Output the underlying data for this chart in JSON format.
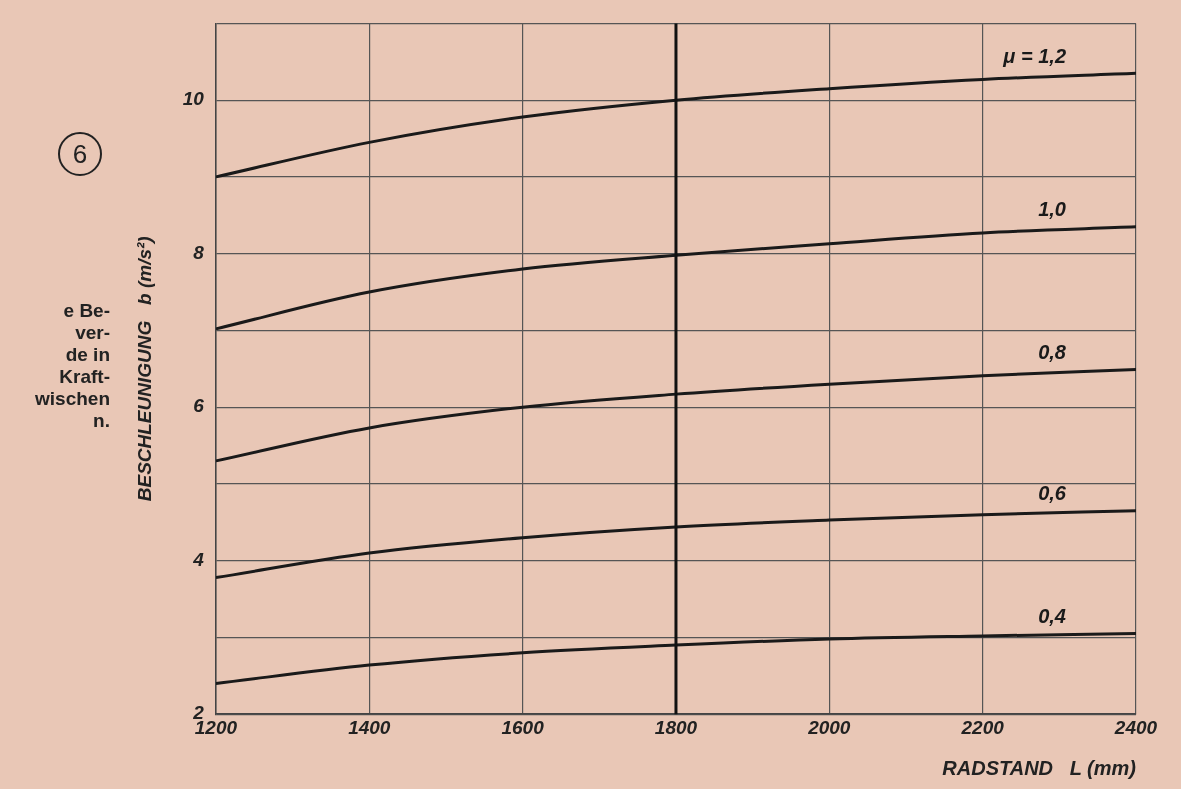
{
  "chart_data": {
    "type": "line",
    "xlabel": "RADSTAND   L (mm)",
    "ylabel": "BESCHLEUNIGUNG   b (m/s²)",
    "x": [
      1200,
      1400,
      1600,
      1800,
      2000,
      2200,
      2400
    ],
    "series": [
      {
        "name": "μ = 1,2",
        "color": "#1a1a1a",
        "values": [
          9.0,
          9.45,
          9.78,
          10.0,
          10.15,
          10.27,
          10.35
        ]
      },
      {
        "name": "1,0",
        "color": "#1a1a1a",
        "values": [
          7.02,
          7.5,
          7.8,
          7.98,
          8.13,
          8.27,
          8.35
        ]
      },
      {
        "name": "0,8",
        "color": "#1a1a1a",
        "values": [
          5.3,
          5.73,
          6.0,
          6.17,
          6.3,
          6.41,
          6.49
        ]
      },
      {
        "name": "0,6",
        "color": "#1a1a1a",
        "values": [
          3.78,
          4.1,
          4.3,
          4.44,
          4.53,
          4.6,
          4.65
        ]
      },
      {
        "name": "0,4",
        "color": "#1a1a1a",
        "values": [
          2.4,
          2.64,
          2.8,
          2.9,
          2.98,
          3.02,
          3.05
        ]
      }
    ],
    "xlim": [
      1200,
      2400
    ],
    "xticks": [
      1200,
      1400,
      1600,
      1800,
      2000,
      2200,
      2400
    ],
    "ylim": [
      2,
      11
    ],
    "yticks": [
      2,
      {
        "value": 3,
        "label": null
      },
      4,
      {
        "value": 5,
        "label": null
      },
      6,
      {
        "value": 7,
        "label": null
      },
      8,
      {
        "value": 9,
        "label": null
      },
      10,
      {
        "value": 11,
        "label": null
      }
    ],
    "grid": true,
    "legend": false,
    "marker": "none",
    "line_style": "solid",
    "ref_lines": [
      {
        "axis": "x",
        "value": 1800,
        "label": null,
        "color": "#111111"
      }
    ],
    "annotations": [
      "6",
      "e Be-\nver-\nde in\nKraft-\nwischen\nn."
    ]
  }
}
